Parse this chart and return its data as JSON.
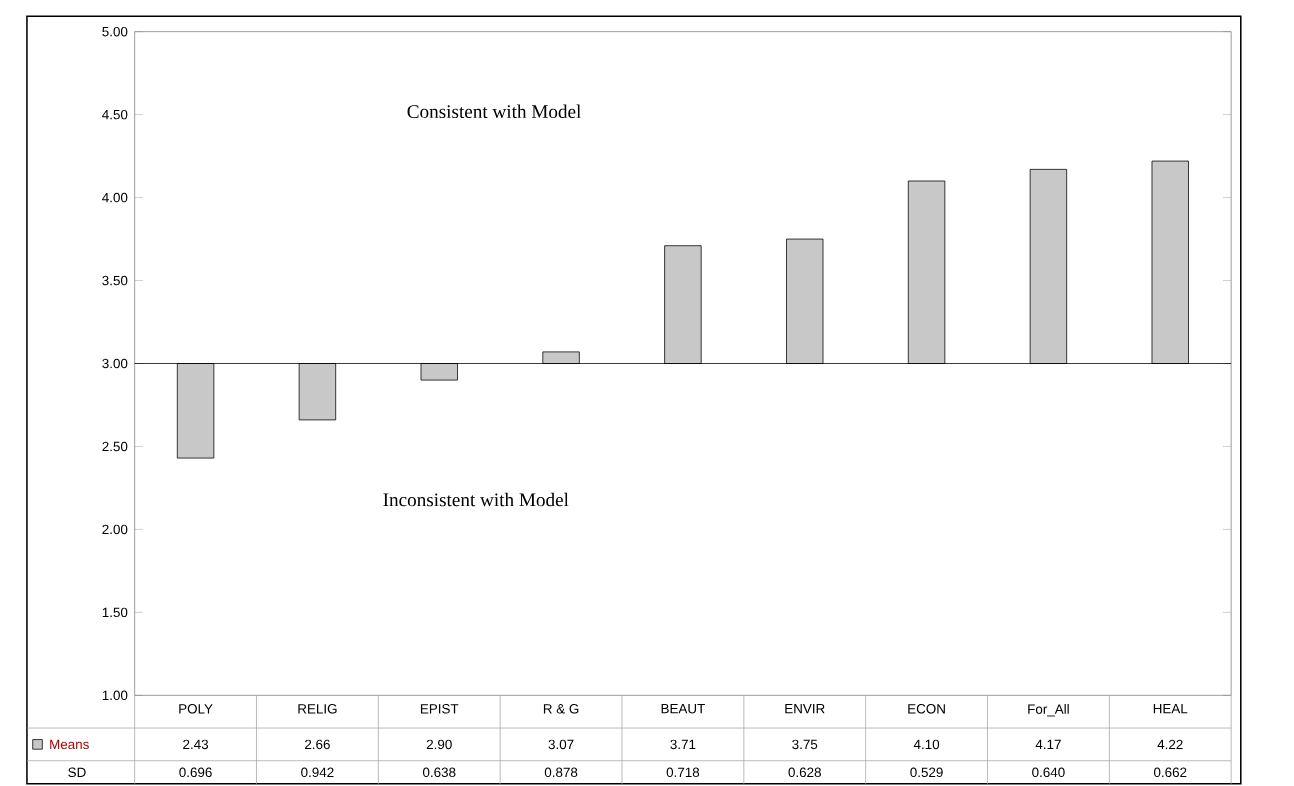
{
  "chart_data": {
    "type": "bar",
    "categories": [
      "POLY",
      "RELIG",
      "EPIST",
      "R & G",
      "BEAUT",
      "ENVIR",
      "ECON",
      "For_All",
      "HEAL"
    ],
    "series": [
      {
        "name": "Means",
        "color": "#c8c8c8",
        "values": [
          -0.57,
          -0.34,
          -0.1,
          0.07,
          0.71,
          0.75,
          1.1,
          1.17,
          1.22
        ],
        "base": [
          3,
          3,
          3,
          3,
          3,
          3,
          3,
          3,
          3
        ],
        "value_labels": [
          "2.43",
          "2.66",
          "2.90",
          "3.07",
          "3.71",
          "3.75",
          "4.10",
          "4.17",
          "4.22"
        ]
      }
    ],
    "ylim": [
      1,
      5
    ],
    "yticks": [
      {
        "value": 1,
        "label": "1.00"
      },
      {
        "value": 1.5,
        "label": "1.50"
      },
      {
        "value": 2,
        "label": "2.00"
      },
      {
        "value": 2.5,
        "label": "2.50"
      },
      {
        "value": 3,
        "label": "3.00"
      },
      {
        "value": 3.5,
        "label": "3.50"
      },
      {
        "value": 4,
        "label": "4.00"
      },
      {
        "value": 4.5,
        "label": "4.50"
      },
      {
        "value": 5,
        "label": "5.00"
      }
    ],
    "ref_lines": [
      {
        "axis": "y",
        "value": 3,
        "color": "#000000"
      }
    ],
    "annotations": [
      "Consistent with Model",
      "Inconsistent with Model",
      "SD",
      "0.696",
      "0.942",
      "0.638",
      "0.878",
      "0.718",
      "0.628",
      "0.529",
      "0.640",
      "0.662"
    ]
  }
}
